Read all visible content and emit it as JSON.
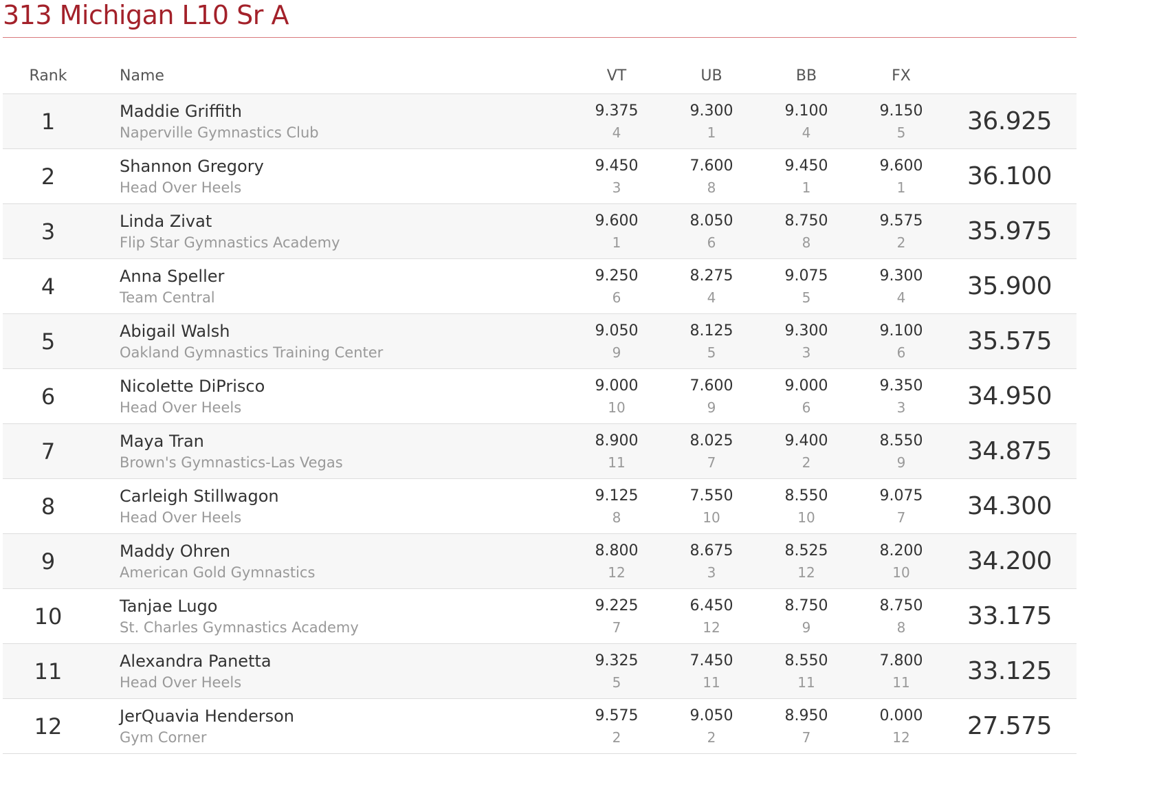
{
  "page": {
    "title": "313 Michigan L10 Sr A"
  },
  "table": {
    "headers": {
      "rank": "Rank",
      "name": "Name",
      "vt": "VT",
      "ub": "UB",
      "bb": "BB",
      "fx": "FX",
      "total": ""
    },
    "rows": [
      {
        "rank": "1",
        "name": "Maddie Griffith",
        "gym": "Naperville Gymnastics Club",
        "vt": {
          "score": "9.375",
          "place": "4"
        },
        "ub": {
          "score": "9.300",
          "place": "1"
        },
        "bb": {
          "score": "9.100",
          "place": "4"
        },
        "fx": {
          "score": "9.150",
          "place": "5"
        },
        "total": "36.925"
      },
      {
        "rank": "2",
        "name": "Shannon Gregory",
        "gym": "Head Over Heels",
        "vt": {
          "score": "9.450",
          "place": "3"
        },
        "ub": {
          "score": "7.600",
          "place": "8"
        },
        "bb": {
          "score": "9.450",
          "place": "1"
        },
        "fx": {
          "score": "9.600",
          "place": "1"
        },
        "total": "36.100"
      },
      {
        "rank": "3",
        "name": "Linda Zivat",
        "gym": "Flip Star Gymnastics Academy",
        "vt": {
          "score": "9.600",
          "place": "1"
        },
        "ub": {
          "score": "8.050",
          "place": "6"
        },
        "bb": {
          "score": "8.750",
          "place": "8"
        },
        "fx": {
          "score": "9.575",
          "place": "2"
        },
        "total": "35.975"
      },
      {
        "rank": "4",
        "name": "Anna Speller",
        "gym": "Team Central",
        "vt": {
          "score": "9.250",
          "place": "6"
        },
        "ub": {
          "score": "8.275",
          "place": "4"
        },
        "bb": {
          "score": "9.075",
          "place": "5"
        },
        "fx": {
          "score": "9.300",
          "place": "4"
        },
        "total": "35.900"
      },
      {
        "rank": "5",
        "name": "Abigail Walsh",
        "gym": "Oakland Gymnastics Training Center",
        "vt": {
          "score": "9.050",
          "place": "9"
        },
        "ub": {
          "score": "8.125",
          "place": "5"
        },
        "bb": {
          "score": "9.300",
          "place": "3"
        },
        "fx": {
          "score": "9.100",
          "place": "6"
        },
        "total": "35.575"
      },
      {
        "rank": "6",
        "name": "Nicolette DiPrisco",
        "gym": "Head Over Heels",
        "vt": {
          "score": "9.000",
          "place": "10"
        },
        "ub": {
          "score": "7.600",
          "place": "9"
        },
        "bb": {
          "score": "9.000",
          "place": "6"
        },
        "fx": {
          "score": "9.350",
          "place": "3"
        },
        "total": "34.950"
      },
      {
        "rank": "7",
        "name": "Maya Tran",
        "gym": "Brown's Gymnastics-Las Vegas",
        "vt": {
          "score": "8.900",
          "place": "11"
        },
        "ub": {
          "score": "8.025",
          "place": "7"
        },
        "bb": {
          "score": "9.400",
          "place": "2"
        },
        "fx": {
          "score": "8.550",
          "place": "9"
        },
        "total": "34.875"
      },
      {
        "rank": "8",
        "name": "Carleigh Stillwagon",
        "gym": "Head Over Heels",
        "vt": {
          "score": "9.125",
          "place": "8"
        },
        "ub": {
          "score": "7.550",
          "place": "10"
        },
        "bb": {
          "score": "8.550",
          "place": "10"
        },
        "fx": {
          "score": "9.075",
          "place": "7"
        },
        "total": "34.300"
      },
      {
        "rank": "9",
        "name": "Maddy Ohren",
        "gym": "American Gold Gymnastics",
        "vt": {
          "score": "8.800",
          "place": "12"
        },
        "ub": {
          "score": "8.675",
          "place": "3"
        },
        "bb": {
          "score": "8.525",
          "place": "12"
        },
        "fx": {
          "score": "8.200",
          "place": "10"
        },
        "total": "34.200"
      },
      {
        "rank": "10",
        "name": "Tanjae Lugo",
        "gym": "St. Charles Gymnastics Academy",
        "vt": {
          "score": "9.225",
          "place": "7"
        },
        "ub": {
          "score": "6.450",
          "place": "12"
        },
        "bb": {
          "score": "8.750",
          "place": "9"
        },
        "fx": {
          "score": "8.750",
          "place": "8"
        },
        "total": "33.175"
      },
      {
        "rank": "11",
        "name": "Alexandra Panetta",
        "gym": "Head Over Heels",
        "vt": {
          "score": "9.325",
          "place": "5"
        },
        "ub": {
          "score": "7.450",
          "place": "11"
        },
        "bb": {
          "score": "8.550",
          "place": "11"
        },
        "fx": {
          "score": "7.800",
          "place": "11"
        },
        "total": "33.125"
      },
      {
        "rank": "12",
        "name": "JerQuavia Henderson",
        "gym": "Gym Corner",
        "vt": {
          "score": "9.575",
          "place": "2"
        },
        "ub": {
          "score": "9.050",
          "place": "2"
        },
        "bb": {
          "score": "8.950",
          "place": "7"
        },
        "fx": {
          "score": "0.000",
          "place": "12"
        },
        "total": "27.575"
      }
    ]
  },
  "colors": {
    "title": "#a3212a",
    "title_rule": "#d9797c",
    "row_stripe": "#f7f7f7",
    "row_border": "#dddddd",
    "muted_text": "#999999",
    "text": "#333333"
  }
}
